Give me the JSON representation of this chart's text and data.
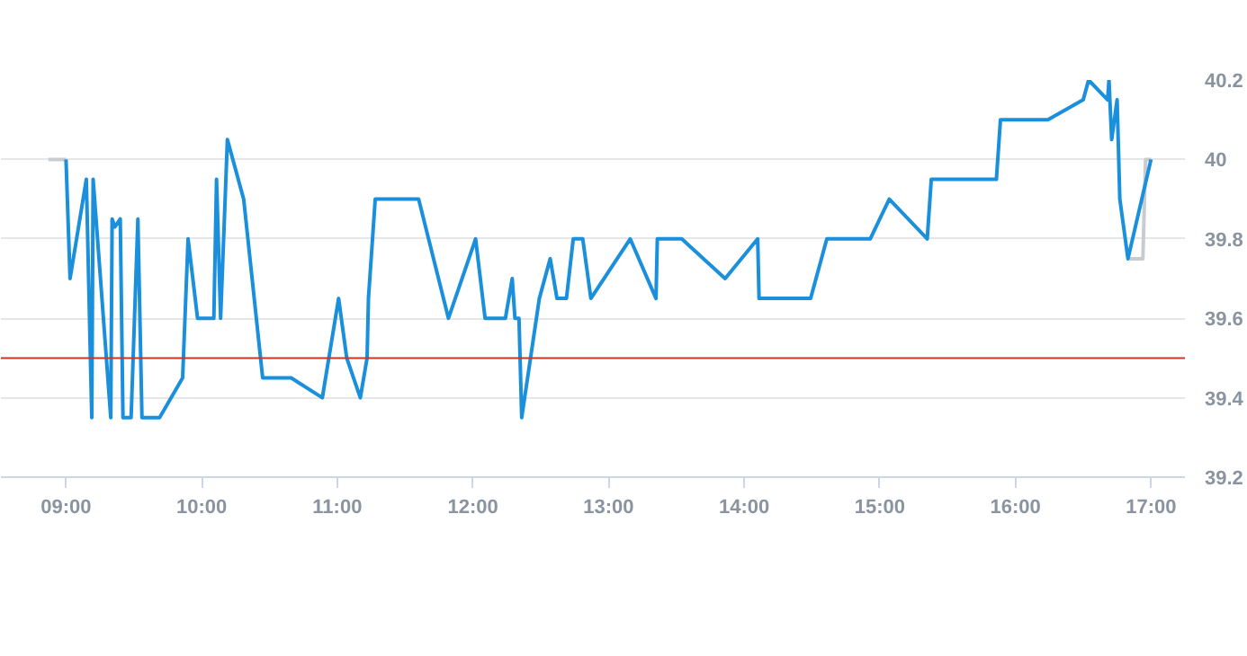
{
  "chart_data": {
    "type": "line",
    "xlim": [
      8.52,
      17.25
    ],
    "ylim": [
      39.2,
      40.2
    ],
    "xticks": [
      {
        "value": 9,
        "label": "09:00"
      },
      {
        "value": 10,
        "label": "10:00"
      },
      {
        "value": 11,
        "label": "11:00"
      },
      {
        "value": 12,
        "label": "12:00"
      },
      {
        "value": 13,
        "label": "13:00"
      },
      {
        "value": 14,
        "label": "14:00"
      },
      {
        "value": 15,
        "label": "15:00"
      },
      {
        "value": 16,
        "label": "16:00"
      },
      {
        "value": 17,
        "label": "17:00"
      }
    ],
    "yticks": [
      39.2,
      39.4,
      39.6,
      39.8,
      40,
      40.2
    ],
    "grid": "y",
    "marker": "none",
    "line_style": "solid",
    "ref_lines": [
      {
        "axis": "y",
        "value": 39.5,
        "color": "#c0392b"
      }
    ],
    "series": [
      {
        "color": "#c8ccd0",
        "x": [
          8.87,
          9.0,
          null,
          16.83,
          16.94,
          16.96,
          17.0
        ],
        "values": [
          40,
          40,
          null,
          39.75,
          39.75,
          40,
          40
        ]
      },
      {
        "color": "#1a8fdc",
        "x": [
          9.0,
          9.03,
          9.15,
          9.19,
          9.2,
          9.33,
          9.34,
          9.36,
          9.4,
          9.42,
          9.48,
          9.53,
          9.56,
          9.69,
          9.86,
          9.9,
          9.97,
          10.09,
          10.11,
          10.14,
          10.19,
          10.31,
          10.45,
          10.66,
          10.89,
          11.01,
          11.07,
          11.17,
          11.22,
          11.23,
          11.28,
          11.6,
          11.82,
          12.02,
          12.09,
          12.24,
          12.29,
          12.31,
          12.34,
          12.36,
          12.49,
          12.57,
          12.62,
          12.69,
          12.74,
          12.81,
          12.87,
          13.16,
          13.35,
          13.36,
          13.54,
          13.86,
          14.1,
          14.11,
          14.49,
          14.61,
          14.93,
          15.07,
          15.35,
          15.38,
          15.86,
          15.89,
          16.24,
          16.5,
          16.54,
          16.68,
          16.69,
          16.71,
          16.75,
          16.77,
          16.83,
          17.0
        ],
        "values": [
          40,
          39.7,
          39.95,
          39.35,
          39.95,
          39.35,
          39.85,
          39.83,
          39.85,
          39.35,
          39.35,
          39.85,
          39.35,
          39.35,
          39.45,
          39.8,
          39.6,
          39.6,
          39.95,
          39.6,
          40.05,
          39.9,
          39.45,
          39.45,
          39.4,
          39.65,
          39.5,
          39.4,
          39.5,
          39.65,
          39.9,
          39.9,
          39.6,
          39.8,
          39.6,
          39.6,
          39.7,
          39.6,
          39.6,
          39.35,
          39.65,
          39.75,
          39.65,
          39.65,
          39.8,
          39.8,
          39.65,
          39.8,
          39.65,
          39.8,
          39.8,
          39.7,
          39.8,
          39.65,
          39.65,
          39.8,
          39.8,
          39.9,
          39.8,
          39.95,
          39.95,
          40.1,
          40.1,
          40.15,
          40.2,
          40.15,
          40.2,
          40.05,
          40.15,
          39.9,
          39.75,
          40
        ]
      }
    ]
  }
}
